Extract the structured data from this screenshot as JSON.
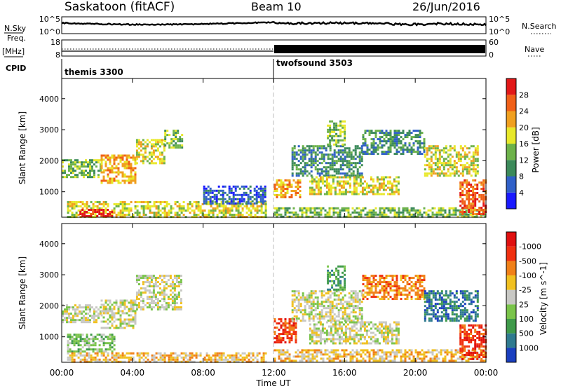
{
  "header": {
    "radar": "Saskatoon (fitACF)",
    "beam": "Beam 10",
    "date": "26/Jun/2016"
  },
  "noise_panel": {
    "left_label": "N.Sky",
    "right_label": "N.Search",
    "left_ticks": [
      "10^5",
      "10^0"
    ],
    "right_ticks": [
      "10^5",
      "10^0"
    ]
  },
  "freq_panel": {
    "left_label": "Freq.",
    "left_unit": "[MHz]",
    "right_label": "Nave",
    "left_ticks": [
      "18",
      "8"
    ],
    "right_ticks": [
      "60",
      "0"
    ]
  },
  "cpid": {
    "label": "CPID",
    "segments": [
      {
        "name": "themis 3300",
        "start_hour": 0
      },
      {
        "name": "twofsound 3503",
        "start_hour": 12
      }
    ]
  },
  "time_axis": {
    "label": "Time UT",
    "ticks": [
      "00:00",
      "04:00",
      "08:00",
      "12:00",
      "16:00",
      "20:00",
      "00:00"
    ]
  },
  "range_axis": {
    "label": "Slant Range [km]",
    "ticks": [
      "1000",
      "2000",
      "3000",
      "4000"
    ]
  },
  "chart_data": [
    {
      "type": "heatmap",
      "title": "",
      "xlabel": "Time UT",
      "ylabel": "Slant Range [km]",
      "xlim_hours": [
        0,
        24
      ],
      "ylim_km": [
        180,
        4650
      ],
      "colorbar": {
        "label": "Power [dB]",
        "ticks": [
          "4",
          "8",
          "12",
          "16",
          "20",
          "24",
          "28"
        ],
        "colors": [
          "#1a1aff",
          "#3060c8",
          "#3c8a5a",
          "#6db24a",
          "#e8e82a",
          "#f0a020",
          "#f06018",
          "#e21818"
        ]
      },
      "regions": [
        {
          "t": [
            0.0,
            2.2
          ],
          "r": [
            1450,
            2050
          ],
          "level": 3
        },
        {
          "t": [
            2.2,
            4.2
          ],
          "r": [
            1300,
            2200
          ],
          "level": 5
        },
        {
          "t": [
            4.2,
            5.8
          ],
          "r": [
            1900,
            2700
          ],
          "level": 4
        },
        {
          "t": [
            5.8,
            6.8
          ],
          "r": [
            2400,
            3000
          ],
          "level": 3
        },
        {
          "t": [
            0.3,
            11.5
          ],
          "r": [
            200,
            700
          ],
          "level": 4
        },
        {
          "t": [
            1.0,
            2.8
          ],
          "r": [
            200,
            450
          ],
          "level": 7
        },
        {
          "t": [
            8.0,
            11.5
          ],
          "r": [
            600,
            1200
          ],
          "level": 1
        },
        {
          "t": [
            12.0,
            13.5
          ],
          "r": [
            800,
            1400
          ],
          "level": 5
        },
        {
          "t": [
            12.0,
            24.0
          ],
          "r": [
            200,
            500
          ],
          "level": 3
        },
        {
          "t": [
            13.0,
            17.0
          ],
          "r": [
            1500,
            2500
          ],
          "level": 2
        },
        {
          "t": [
            14.0,
            19.0
          ],
          "r": [
            900,
            1500
          ],
          "level": 4
        },
        {
          "t": [
            15.0,
            16.0
          ],
          "r": [
            2500,
            3300
          ],
          "level": 3
        },
        {
          "t": [
            17.0,
            20.5
          ],
          "r": [
            2200,
            3000
          ],
          "level": 2
        },
        {
          "t": [
            20.5,
            23.5
          ],
          "r": [
            1500,
            2500
          ],
          "level": 4
        },
        {
          "t": [
            22.5,
            24.0
          ],
          "r": [
            300,
            1400
          ],
          "level": 6
        }
      ]
    },
    {
      "type": "heatmap",
      "title": "",
      "xlabel": "Time UT",
      "ylabel": "Slant Range [km]",
      "xlim_hours": [
        0,
        24
      ],
      "ylim_km": [
        180,
        4650
      ],
      "colorbar": {
        "label": "Velocity [m s^-1]",
        "ticks": [
          "1000",
          "500",
          "100",
          "25",
          "-25",
          "-100",
          "-500",
          "-1000"
        ],
        "colors": [
          "#1a3fbf",
          "#2f7a8f",
          "#3f9a4a",
          "#7ac44a",
          "#c8c8c4",
          "#f0c020",
          "#f08018",
          "#f03010",
          "#e01010"
        ]
      },
      "regions": [
        {
          "t": [
            0.0,
            2.2
          ],
          "r": [
            1450,
            2050
          ],
          "level": 4
        },
        {
          "t": [
            2.2,
            4.2
          ],
          "r": [
            1300,
            2200
          ],
          "level": 4
        },
        {
          "t": [
            4.2,
            6.8
          ],
          "r": [
            1900,
            3000
          ],
          "level": 4
        },
        {
          "t": [
            0.3,
            3.0
          ],
          "r": [
            500,
            1100
          ],
          "level": 3
        },
        {
          "t": [
            0.3,
            11.5
          ],
          "r": [
            200,
            500
          ],
          "level": 5
        },
        {
          "t": [
            12.0,
            13.2
          ],
          "r": [
            800,
            1600
          ],
          "level": 7
        },
        {
          "t": [
            12.0,
            24.0
          ],
          "r": [
            200,
            600
          ],
          "level": 5
        },
        {
          "t": [
            13.0,
            17.0
          ],
          "r": [
            1500,
            2500
          ],
          "level": 4
        },
        {
          "t": [
            14.0,
            19.0
          ],
          "r": [
            800,
            1500
          ],
          "level": 4
        },
        {
          "t": [
            15.0,
            16.0
          ],
          "r": [
            2500,
            3300
          ],
          "level": 2
        },
        {
          "t": [
            17.0,
            20.5
          ],
          "r": [
            2200,
            3000
          ],
          "level": 6
        },
        {
          "t": [
            20.5,
            23.5
          ],
          "r": [
            1500,
            2500
          ],
          "level": 1
        },
        {
          "t": [
            22.5,
            24.0
          ],
          "r": [
            300,
            1400
          ],
          "level": 7
        }
      ]
    }
  ]
}
